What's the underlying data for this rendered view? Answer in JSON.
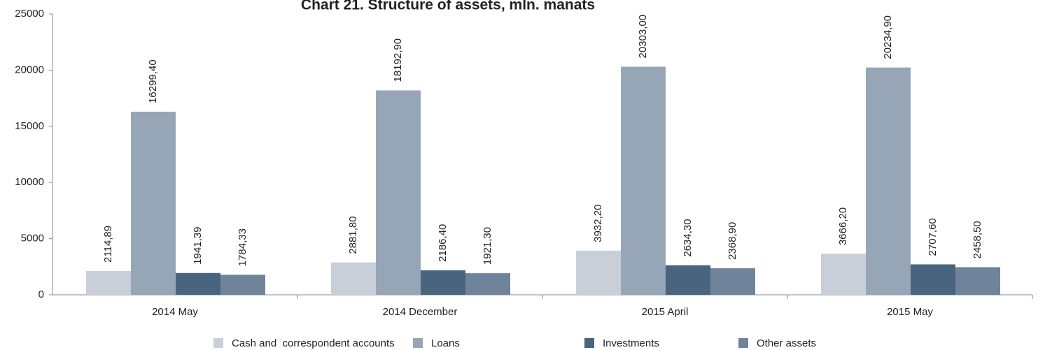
{
  "chart_data": {
    "type": "bar",
    "title": "Chart 21. Structure of assets, mln. manats",
    "categories": [
      "2014 May",
      "2014 December",
      "2015 April",
      "2015 May"
    ],
    "series": [
      {
        "name": "Cash and  correspondent accounts",
        "color": "#c9cfd9",
        "values": [
          2114.89,
          2881.8,
          3932.2,
          3666.2
        ],
        "value_labels": [
          "2114,89",
          "2881,80",
          "3932,20",
          "3666,20"
        ]
      },
      {
        "name": "Loans",
        "color": "#97a6b7",
        "values": [
          16299.4,
          18192.9,
          20303.0,
          20234.9
        ],
        "value_labels": [
          "16299,40",
          "18192,90",
          "20303,00",
          "20234,90"
        ]
      },
      {
        "name": "Investments",
        "color": "#48647e",
        "values": [
          1941.39,
          2186.4,
          2634.3,
          2707.6
        ],
        "value_labels": [
          "1941,39",
          "2186,40",
          "2634,30",
          "2707,60"
        ]
      },
      {
        "name": "Other assets",
        "color": "#6f849a",
        "values": [
          1784.33,
          1921.3,
          2368.9,
          2458.5
        ],
        "value_labels": [
          "1784,33",
          "1921,30",
          "2368,90",
          "2458,50"
        ]
      }
    ],
    "ylim": [
      0,
      25000
    ],
    "yticks": [
      0,
      5000,
      10000,
      15000,
      20000,
      25000
    ],
    "legend": "bottom"
  }
}
